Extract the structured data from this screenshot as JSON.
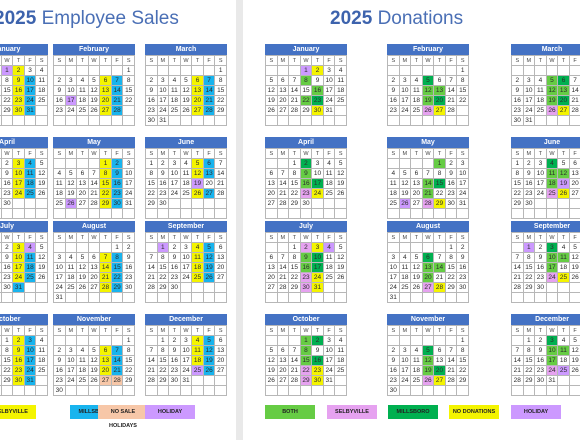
{
  "left_title": {
    "year": "2025",
    "text": "Employee Sales"
  },
  "right_title": {
    "year": "2025",
    "text": "Donations"
  },
  "months": [
    "January",
    "February",
    "March",
    "April",
    "May",
    "June",
    "July",
    "August",
    "September",
    "October",
    "November",
    "December"
  ],
  "dow": [
    "S",
    "M",
    "T",
    "W",
    "T",
    "F",
    "S"
  ],
  "first_weekday": [
    3,
    6,
    6,
    2,
    4,
    0,
    2,
    5,
    1,
    3,
    6,
    1
  ],
  "days_in_month": [
    31,
    28,
    31,
    30,
    31,
    30,
    31,
    31,
    30,
    31,
    30,
    31
  ],
  "colors": {
    "both": "#66cc44",
    "selbyville": "#e6a2f0",
    "millsboro": "#00b050",
    "no_donations": "#f4f400",
    "holiday": "#cc99ff",
    "sales_selbyville": "#f4f400",
    "sales_millsboro": "#18b4ee",
    "no_sale": "#f7c7a8"
  },
  "left_legend": [
    {
      "label": "SELBYVILLE",
      "cls": "c-yellow"
    },
    {
      "label": "MILLSBORO",
      "cls": "c-cyan"
    },
    {
      "label": "NO SALE HOLIDAYS",
      "cls": "c-peach"
    },
    {
      "label": "HOLIDAY",
      "cls": "c-holi"
    }
  ],
  "right_legend": [
    {
      "label": "BOTH",
      "cls": "c-both"
    },
    {
      "label": "SELBYVILLE",
      "cls": "c-selby"
    },
    {
      "label": "MILLSBORO",
      "cls": "c-mills"
    },
    {
      "label": "NO DONATIONS",
      "cls": "c-yellow"
    },
    {
      "label": "HOLIDAY",
      "cls": "c-holi"
    }
  ],
  "left_highlights": {
    "0": {
      "1": "c-holi",
      "2": "c-yellow",
      "9": "c-yellow",
      "10": "c-cyan",
      "16": "c-yellow",
      "17": "c-cyan",
      "23": "c-yellow",
      "24": "c-cyan",
      "30": "c-yellow",
      "31": "c-cyan"
    },
    "1": {
      "6": "c-yellow",
      "7": "c-cyan",
      "13": "c-yellow",
      "14": "c-cyan",
      "17": "c-holi",
      "20": "c-yellow",
      "21": "c-cyan",
      "27": "c-yellow",
      "28": "c-cyan"
    },
    "2": {
      "6": "c-yellow",
      "7": "c-cyan",
      "13": "c-yellow",
      "14": "c-cyan",
      "20": "c-yellow",
      "21": "c-cyan",
      "27": "c-yellow",
      "28": "c-cyan"
    },
    "3": {
      "3": "c-yellow",
      "4": "c-cyan",
      "10": "c-yellow",
      "11": "c-cyan",
      "17": "c-yellow",
      "18": "c-cyan",
      "24": "c-yellow",
      "25": "c-cyan"
    },
    "4": {
      "1": "c-yellow",
      "2": "c-cyan",
      "8": "c-yellow",
      "9": "c-cyan",
      "15": "c-yellow",
      "16": "c-cyan",
      "22": "c-yellow",
      "23": "c-cyan",
      "26": "c-holi",
      "29": "c-yellow",
      "30": "c-cyan"
    },
    "5": {
      "5": "c-yellow",
      "6": "c-cyan",
      "12": "c-yellow",
      "13": "c-cyan",
      "19": "c-holi",
      "26": "c-yellow",
      "27": "c-cyan"
    },
    "6": {
      "3": "c-yellow",
      "4": "c-holi",
      "10": "c-yellow",
      "11": "c-cyan",
      "17": "c-yellow",
      "18": "c-cyan",
      "24": "c-yellow",
      "25": "c-cyan",
      "31": "c-cyan"
    },
    "7": {
      "7": "c-yellow",
      "8": "c-cyan",
      "14": "c-yellow",
      "15": "c-cyan",
      "21": "c-yellow",
      "22": "c-cyan",
      "28": "c-yellow",
      "29": "c-cyan"
    },
    "8": {
      "1": "c-holi",
      "4": "c-yellow",
      "5": "c-cyan",
      "11": "c-yellow",
      "12": "c-cyan",
      "18": "c-yellow",
      "19": "c-cyan",
      "25": "c-yellow",
      "26": "c-cyan"
    },
    "9": {
      "2": "c-yellow",
      "3": "c-cyan",
      "9": "c-yellow",
      "10": "c-cyan",
      "16": "c-yellow",
      "17": "c-cyan",
      "23": "c-yellow",
      "24": "c-cyan",
      "30": "c-yellow",
      "31": "c-cyan"
    },
    "10": {
      "6": "c-yellow",
      "7": "c-cyan",
      "13": "c-yellow",
      "14": "c-cyan",
      "20": "c-yellow",
      "21": "c-cyan",
      "27": "c-peach",
      "28": "c-peach"
    },
    "11": {
      "4": "c-yellow",
      "5": "c-cyan",
      "11": "c-yellow",
      "12": "c-cyan",
      "18": "c-yellow",
      "19": "c-cyan",
      "25": "c-holi",
      "26": "c-cyan"
    }
  },
  "right_highlights": {
    "0": {
      "1": "c-holi",
      "2": "c-yellow",
      "8": "c-both",
      "16": "c-both",
      "22": "c-both",
      "23": "c-mills",
      "30": "c-yellow"
    },
    "1": {
      "5": "c-mills",
      "12": "c-both",
      "13": "c-both",
      "19": "c-both",
      "20": "c-mills",
      "26": "c-selby",
      "27": "c-yellow"
    },
    "2": {
      "5": "c-both",
      "6": "c-mills",
      "12": "c-both",
      "13": "c-both",
      "19": "c-both",
      "20": "c-mills",
      "26": "c-selby",
      "27": "c-yellow"
    },
    "3": {
      "2": "c-mills",
      "9": "c-both",
      "16": "c-both",
      "17": "c-mills",
      "23": "c-selby",
      "24": "c-yellow"
    },
    "4": {
      "1": "c-both",
      "14": "c-both",
      "15": "c-mills",
      "21": "c-both",
      "26": "c-holi",
      "28": "c-selby",
      "29": "c-yellow"
    },
    "5": {
      "4": "c-mills",
      "11": "c-both",
      "12": "c-both",
      "18": "c-both",
      "19": "c-holi",
      "25": "c-selby",
      "26": "c-yellow"
    },
    "6": {
      "2": "c-selby",
      "3": "c-yellow",
      "4": "c-holi",
      "9": "c-both",
      "10": "c-mills",
      "16": "c-both",
      "17": "c-mills",
      "23": "c-selby",
      "24": "c-yellow",
      "30": "c-selby",
      "31": "c-yellow"
    },
    "7": {
      "6": "c-mills",
      "13": "c-both",
      "14": "c-both",
      "20": "c-both",
      "27": "c-selby",
      "28": "c-yellow"
    },
    "8": {
      "1": "c-holi",
      "3": "c-mills",
      "10": "c-both",
      "11": "c-both",
      "17": "c-both",
      "24": "c-selby",
      "25": "c-yellow"
    },
    "9": {
      "1": "c-both",
      "2": "c-mills",
      "8": "c-both",
      "15": "c-both",
      "16": "c-mills",
      "22": "c-selby",
      "23": "c-yellow",
      "29": "c-selby",
      "30": "c-yellow"
    },
    "10": {
      "5": "c-mills",
      "12": "c-both",
      "19": "c-both",
      "20": "c-mills",
      "26": "c-selby",
      "27": "c-yellow"
    },
    "11": {
      "3": "c-mills",
      "10": "c-both",
      "11": "c-both",
      "17": "c-both",
      "24": "c-selby",
      "25": "c-holi"
    }
  }
}
